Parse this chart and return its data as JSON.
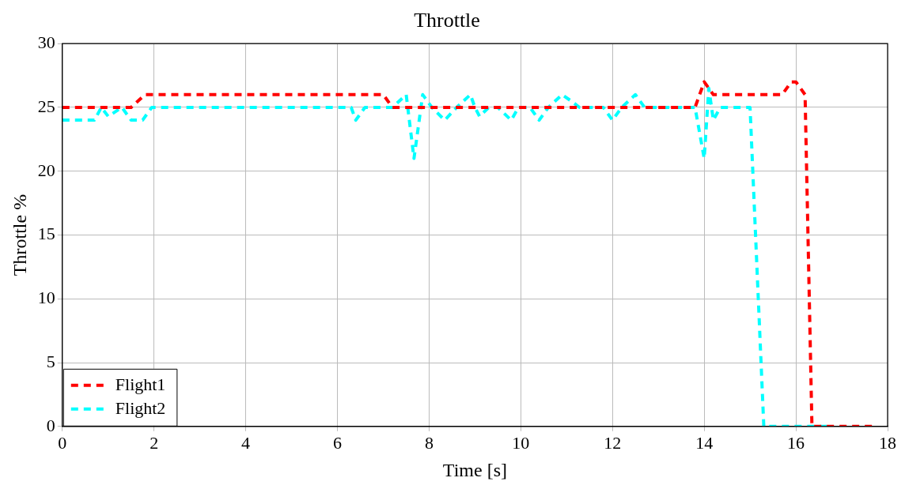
{
  "chart_data": {
    "type": "line",
    "title": "Throttle",
    "xlabel": "Time [s]",
    "ylabel": "Throttle %",
    "xlim": [
      0,
      18
    ],
    "xticks": [
      0,
      2,
      4,
      6,
      8,
      10,
      12,
      14,
      16,
      18
    ],
    "ylim": [
      0,
      30
    ],
    "yticks": [
      0,
      5,
      10,
      15,
      20,
      25,
      30
    ],
    "grid": true,
    "legend": "bottom left",
    "line_style": "dashed",
    "marker": "none",
    "series": [
      {
        "name": "Flight1",
        "color": "#ff0000",
        "x": [
          0,
          1.5,
          1.8,
          7.0,
          7.2,
          13.8,
          14.0,
          14.2,
          15.7,
          15.9,
          16.0,
          16.2,
          16.35,
          17.7
        ],
        "values": [
          25,
          25,
          26,
          26,
          25,
          25,
          27,
          26,
          26,
          27,
          27,
          26,
          0,
          0
        ]
      },
      {
        "name": "Flight2",
        "color": "#00ffff",
        "x": [
          0,
          0.7,
          0.85,
          1.0,
          1.3,
          1.5,
          1.75,
          1.95,
          6.3,
          6.4,
          6.6,
          7.2,
          7.5,
          7.67,
          7.86,
          8.06,
          8.34,
          8.6,
          8.9,
          9.0,
          9.1,
          9.3,
          9.5,
          9.79,
          9.95,
          10.2,
          10.4,
          10.6,
          10.9,
          11.1,
          11.28,
          11.8,
          12.0,
          12.2,
          12.5,
          12.7,
          13.8,
          14.0,
          14.1,
          14.2,
          14.35,
          15.0,
          15.3,
          16.7
        ],
        "values": [
          24,
          24,
          25,
          24.3,
          25,
          24,
          24,
          25,
          25,
          24,
          25,
          25,
          26,
          21,
          26,
          25,
          24,
          25,
          26,
          25,
          24.3,
          25,
          25,
          24,
          25,
          25,
          24,
          25,
          26,
          25.5,
          25,
          25,
          24,
          25,
          26,
          25,
          25,
          21,
          26.5,
          24,
          25,
          25,
          0,
          0
        ]
      }
    ]
  }
}
